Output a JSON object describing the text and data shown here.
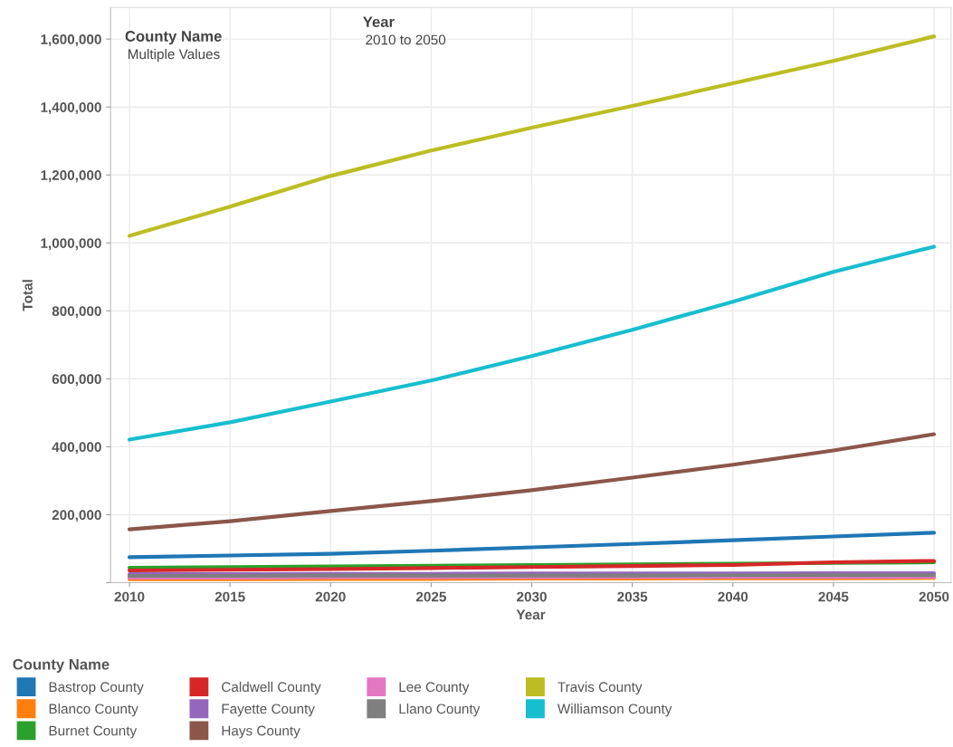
{
  "chart_data": {
    "type": "line",
    "xlabel": "Year",
    "ylabel": "Total",
    "legend_title": "County Name",
    "annotations": [
      "County Name",
      "Multiple Values",
      "Year",
      "2010 to 2050"
    ],
    "x": [
      2010,
      2015,
      2020,
      2025,
      2030,
      2035,
      2040,
      2045,
      2050
    ],
    "series": [
      {
        "name": "Bastrop County",
        "color": "#1f77b4",
        "values": [
          75000,
          80000,
          85000,
          94000,
          104000,
          114000,
          125000,
          136000,
          147000
        ]
      },
      {
        "name": "Blanco County",
        "color": "#ff7f0e",
        "values": [
          10000,
          10000,
          11000,
          11000,
          12000,
          12000,
          13000,
          13000,
          14000
        ]
      },
      {
        "name": "Burnet County",
        "color": "#2ca02c",
        "values": [
          44000,
          46000,
          48000,
          50000,
          52000,
          54000,
          56000,
          58000,
          60000
        ]
      },
      {
        "name": "Caldwell County",
        "color": "#d62728",
        "values": [
          36000,
          38000,
          40000,
          43000,
          46000,
          49000,
          52000,
          60000,
          64000
        ]
      },
      {
        "name": "Fayette County",
        "color": "#9467bd",
        "values": [
          25000,
          25000,
          26000,
          26000,
          27000,
          27000,
          27000,
          28000,
          28000
        ]
      },
      {
        "name": "Hays County",
        "color": "#8c564b",
        "values": [
          157000,
          181000,
          211000,
          240000,
          272000,
          309000,
          347000,
          389000,
          437000
        ]
      },
      {
        "name": "Lee County",
        "color": "#e377c2",
        "values": [
          15000,
          15000,
          16000,
          16000,
          16000,
          17000,
          17000,
          17000,
          17000
        ]
      },
      {
        "name": "Llano County",
        "color": "#7f7f7f",
        "values": [
          20000,
          20000,
          21000,
          21000,
          21000,
          21000,
          22000,
          22000,
          22000
        ]
      },
      {
        "name": "Travis County",
        "color": "#bcbd22",
        "values": [
          1021000,
          1107000,
          1197000,
          1272000,
          1339000,
          1403000,
          1470000,
          1536000,
          1608000
        ]
      },
      {
        "name": "Williamson County",
        "color": "#17becf",
        "values": [
          421000,
          472000,
          533000,
          595000,
          667000,
          744000,
          827000,
          915000,
          989000
        ]
      }
    ],
    "xlim": [
      2009.06,
      2050.85
    ],
    "xticks": [
      2010,
      2015,
      2020,
      2025,
      2030,
      2035,
      2040,
      2045,
      2050
    ],
    "ylim": [
      0,
      1693000
    ],
    "yticks": [
      {
        "value": 0,
        "label": null
      },
      {
        "value": 200000,
        "label": "200,000"
      },
      {
        "value": 400000,
        "label": "400,000"
      },
      {
        "value": 600000,
        "label": "600,000"
      },
      {
        "value": 800000,
        "label": "800,000"
      },
      {
        "value": 1000000,
        "label": "1,000,000"
      },
      {
        "value": 1200000,
        "label": "1,200,000"
      },
      {
        "value": 1400000,
        "label": "1,400,000"
      },
      {
        "value": 1600000,
        "label": "1,600,000"
      }
    ],
    "grid": true,
    "legend": "bottom left",
    "marker": "none",
    "line_style": "solid"
  }
}
